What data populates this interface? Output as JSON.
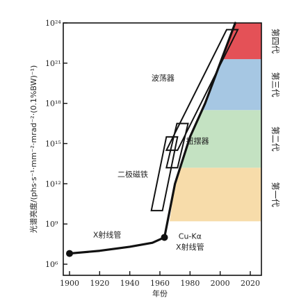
{
  "chart_data": {
    "type": "line",
    "xlabel": "年份",
    "ylabel": "光谱亮度/(phs·s⁻¹·mm⁻²·mrad⁻²·(0.1%BW)⁻¹)",
    "xlim": [
      1895,
      2025
    ],
    "xticks": [
      "1900",
      "1920",
      "1940",
      "1960",
      "1980",
      "2000",
      "2020"
    ],
    "ylim_log10": [
      5.5,
      24
    ],
    "yticks": [
      {
        "label": "10⁶",
        "exp": 6
      },
      {
        "label": "10⁹",
        "exp": 9
      },
      {
        "label": "10¹²",
        "exp": 12
      },
      {
        "label": "10¹⁵",
        "exp": 15
      },
      {
        "label": "10¹⁸",
        "exp": 18
      },
      {
        "label": "10²¹",
        "exp": 21
      },
      {
        "label": "10²⁴",
        "exp": 24
      }
    ],
    "y_scale": "log",
    "series": [
      {
        "x": [
          1900,
          1920,
          1940,
          1955,
          1963
        ],
        "log10_y": [
          6.8,
          7.0,
          7.3,
          7.6,
          8.0
        ]
      },
      {
        "x": [
          1963,
          1970,
          1980,
          1990,
          2000,
          2010
        ],
        "log10_y": [
          8.0,
          12.0,
          15.5,
          18.0,
          21.0,
          24.0
        ]
      }
    ],
    "bands": [
      {
        "label": "第一代",
        "log10_from": 9.2,
        "log10_to": 13.2,
        "color": "#f7dcaa"
      },
      {
        "label": "第二代",
        "log10_from": 13.2,
        "log10_to": 17.5,
        "color": "#c4e2c2"
      },
      {
        "label": "第三代",
        "log10_from": 17.5,
        "log10_to": 21.3,
        "color": "#a6c7e3"
      },
      {
        "label": "第四代",
        "log10_from": 21.3,
        "log10_to": 24.0,
        "color": "#e45157"
      }
    ],
    "annotations": [
      {
        "text": "X射线管",
        "x": 1925,
        "log10_y": 8.0
      },
      {
        "text": "Cu-Kα",
        "x": 1980,
        "log10_y": 7.9
      },
      {
        "text": "X射线管",
        "x": 1980,
        "log10_y": 7.1
      },
      {
        "text": "二极磁铁",
        "x": 1942,
        "log10_y": 12.5
      },
      {
        "text": "扭摆器",
        "x": 1985,
        "log10_y": 15.0
      },
      {
        "text": "波荡器",
        "x": 1962,
        "log10_y": 19.7
      }
    ],
    "markers": [
      {
        "x": 1900,
        "log10_y": 6.8
      },
      {
        "x": 1963,
        "log10_y": 8.0
      }
    ],
    "brackets": [
      {
        "label": "二极磁铁",
        "x_from": 1958,
        "x_to": 1968,
        "log10_from": 10.0,
        "log10_to": 15.5
      },
      {
        "label": "扭摆器",
        "x_from": 1968,
        "x_to": 1975,
        "log10_from": 13.2,
        "log10_to": 16.5
      },
      {
        "label": "波荡器",
        "x_from": 1968,
        "x_to": 2008,
        "log10_from": 14.5,
        "log10_to": 23.5
      }
    ],
    "grid": false
  }
}
